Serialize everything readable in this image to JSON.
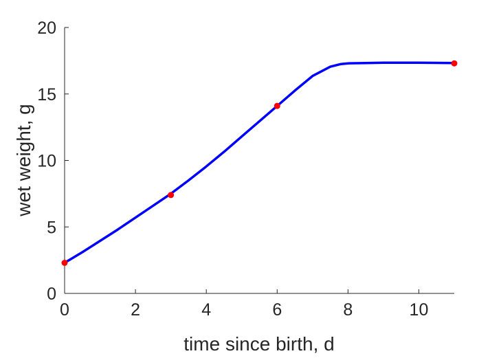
{
  "chart_data": {
    "type": "line",
    "xlabel": "time since birth, d",
    "ylabel": "wet weight, g",
    "xlim": [
      0,
      11
    ],
    "ylim": [
      0,
      20
    ],
    "xticks": [
      0,
      2,
      4,
      6,
      8,
      10
    ],
    "yticks": [
      0,
      5,
      10,
      15,
      20
    ],
    "grid": false,
    "series": [
      {
        "kind": "line",
        "color": "#0000ff",
        "x": [
          0,
          0.5,
          1,
          1.5,
          2,
          2.5,
          3,
          3.5,
          4,
          4.5,
          5,
          5.5,
          6,
          6.5,
          7,
          7.5,
          7.8,
          8,
          8.5,
          9,
          10,
          11
        ],
        "y": [
          2.3,
          3.1,
          3.95,
          4.8,
          5.7,
          6.6,
          7.5,
          8.5,
          9.55,
          10.65,
          11.8,
          12.95,
          14.1,
          15.25,
          16.35,
          17.05,
          17.25,
          17.3,
          17.33,
          17.35,
          17.35,
          17.33
        ]
      },
      {
        "kind": "scatter",
        "color": "#ff0000",
        "x": [
          0,
          3,
          6,
          11
        ],
        "y": [
          2.3,
          7.4,
          14.1,
          17.3
        ]
      }
    ]
  }
}
